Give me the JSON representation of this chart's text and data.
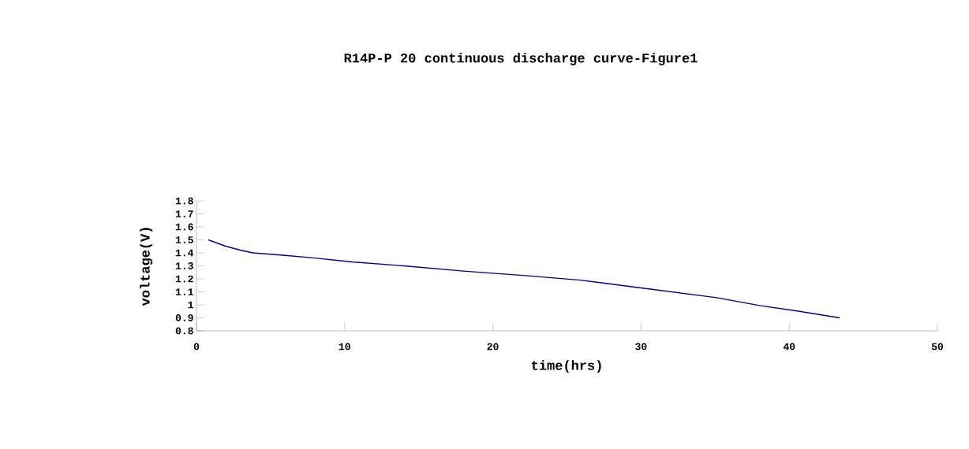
{
  "chart_data": {
    "type": "line",
    "title": "R14P-P 20    continuous discharge curve-Figure1",
    "xlabel": "time(hrs)",
    "ylabel": "voltage(V)",
    "x": [
      0.8,
      2.0,
      3.0,
      3.8,
      6,
      8,
      10.5,
      14,
      18,
      22.2,
      25.9,
      30,
      35.1,
      38,
      40.7,
      43.4
    ],
    "values": [
      1.5,
      1.45,
      1.42,
      1.4,
      1.38,
      1.36,
      1.33,
      1.3,
      1.26,
      1.225,
      1.19,
      1.13,
      1.055,
      0.995,
      0.95,
      0.9
    ],
    "color": "#000080",
    "xlim": [
      0,
      50
    ],
    "xticks": [
      0,
      10,
      20,
      30,
      40,
      50
    ],
    "ylim": [
      0.8,
      1.8
    ],
    "yticks": [
      0.8,
      0.9,
      1,
      1.1,
      1.2,
      1.3,
      1.4,
      1.5,
      1.6,
      1.7,
      1.8
    ],
    "marker": "none",
    "line_style": "solid"
  }
}
